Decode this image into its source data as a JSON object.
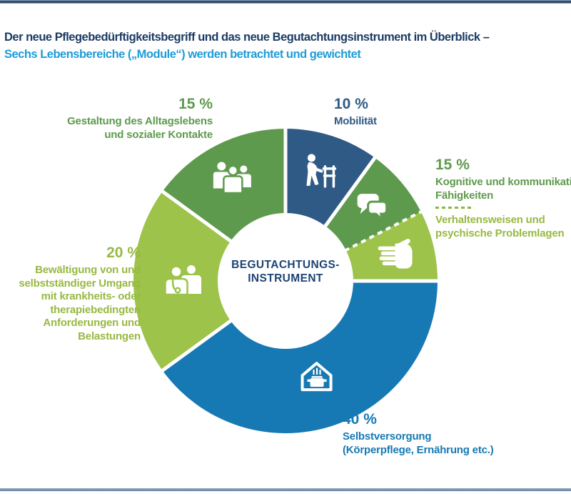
{
  "header": {
    "title_line1": "Der neue Pflegebedürftigkeitsbegriff und das neue Begutachtungsinstrument im Überblick –",
    "title_line2": "Sechs Lebensbereiche („Module“) werden betrachtet und gewichtet"
  },
  "palette": {
    "navy": "#1c3b63",
    "bright_blue": "#1c9cd8",
    "dark_slice_blue": "#2e5a85",
    "mid_blue": "#1779b3",
    "mid_green": "#5e9a4d",
    "light_green": "#9dc34a",
    "text_light_green": "#97b943",
    "rule_steel_blue": "#7d97af",
    "center_text_navy": "#1d4373"
  },
  "chart_data": {
    "type": "pie",
    "subtype": "donut",
    "title": "Der neue Pflegebedürftigkeitsbegriff und das neue Begutachtungsinstrument im Überblick – Sechs Lebensbereiche („Module“) werden betrachtet und gewichtet",
    "center_label_line1": "BEGUTACHTUNGS-",
    "center_label_line2": "INSTRUMENT",
    "units": "%",
    "start_angle_deg": 0,
    "direction": "clockwise",
    "segments": [
      {
        "id": "mobilitaet",
        "value": 10,
        "pct_label": "10 %",
        "label": "Mobilität",
        "color": "#2e5a85",
        "icon": "person-with-walker-icon"
      },
      {
        "id": "kognitiv",
        "value": 7.5,
        "pct_label": "15 %",
        "label": "Kognitive und kommunikative Fähigkeiten",
        "color": "#5e9a4d",
        "icon": "speech-bubbles-icon"
      },
      {
        "id": "verhalten",
        "value": 7.5,
        "label": "Verhaltensweisen und psychische Problemlagen",
        "color": "#9dc34a",
        "icon": "hand-icon",
        "dashed_before": true
      },
      {
        "id": "selbstversorgung",
        "value": 40,
        "pct_label": "40 %",
        "label": "Selbstversorgung",
        "sublabel": "(Körperpflege, Ernährung etc.)",
        "color": "#1779b3",
        "icon": "house-cooking-pot-icon"
      },
      {
        "id": "bewaeltigung",
        "value": 20,
        "pct_label": "20 %",
        "label": "Bewältigung von und selbstständiger Umgang mit krankheits- oder therapiebedingten Anforderungen und Belastungen",
        "color": "#9dc34a",
        "icon": "doctor-patient-icon"
      },
      {
        "id": "gestaltung",
        "value": 15,
        "pct_label": "15 %",
        "label": "Gestaltung des Alltagslebens und sozialer Kontakte",
        "color": "#5e9a4d",
        "icon": "people-group-icon"
      }
    ]
  },
  "callouts": {
    "gestaltung": {
      "pct": "15 %",
      "line1": "Gestaltung des Alltagslebens",
      "line2": "und sozialer Kontakte"
    },
    "mobilitaet": {
      "pct": "10 %",
      "line1": "Mobilität"
    },
    "kognitiv": {
      "pct": "15 %",
      "line1": "Kognitive und kommunikative",
      "line2": "Fähigkeiten",
      "line3": "Verhaltensweisen und",
      "line4": "psychische Problemlagen"
    },
    "selbstversorgung": {
      "pct": "40 %",
      "line1": "Selbstversorgung",
      "line2": "(Körperpflege, Ernährung etc.)"
    },
    "bewaeltigung": {
      "pct": "20 %",
      "line1": "Bewältigung von und",
      "line2": "selbstständiger Umgang",
      "line3": "mit krankheits- oder",
      "line4": "therapiebedingten",
      "line5": "Anforderungen und",
      "line6": "Belastungen"
    }
  }
}
